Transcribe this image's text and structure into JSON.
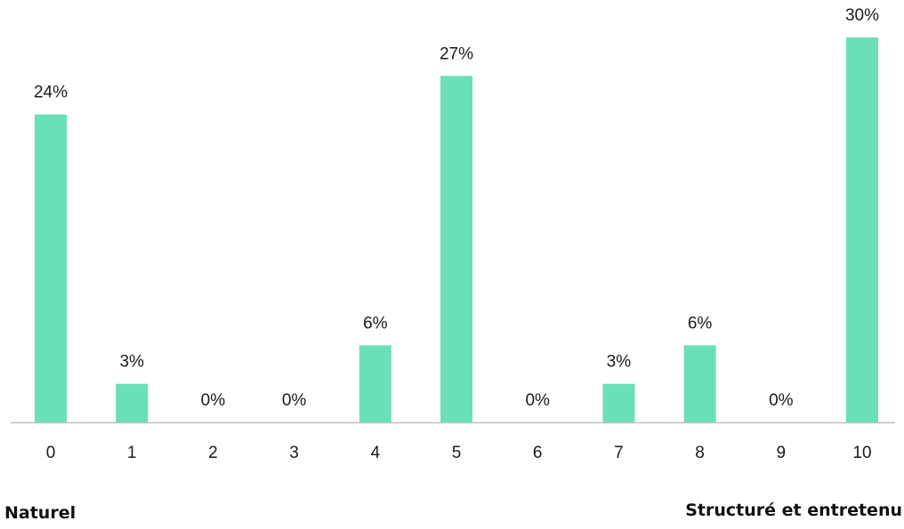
{
  "chart_data": {
    "type": "bar",
    "categories": [
      "0",
      "1",
      "2",
      "3",
      "4",
      "5",
      "6",
      "7",
      "8",
      "9",
      "10"
    ],
    "values": [
      24,
      3,
      0,
      0,
      6,
      27,
      0,
      3,
      6,
      0,
      30
    ],
    "value_labels": [
      "24%",
      "3%",
      "0%",
      "0%",
      "6%",
      "27%",
      "0%",
      "3%",
      "6%",
      "0%",
      "30%"
    ],
    "unit": "%",
    "ylim": [
      0,
      30
    ],
    "grid": false,
    "bar_color": "#6AE0B6",
    "axis_color": "#bfbfbf"
  },
  "scale_labels": {
    "left": "Naturel",
    "right": "Structuré et entretenu"
  }
}
